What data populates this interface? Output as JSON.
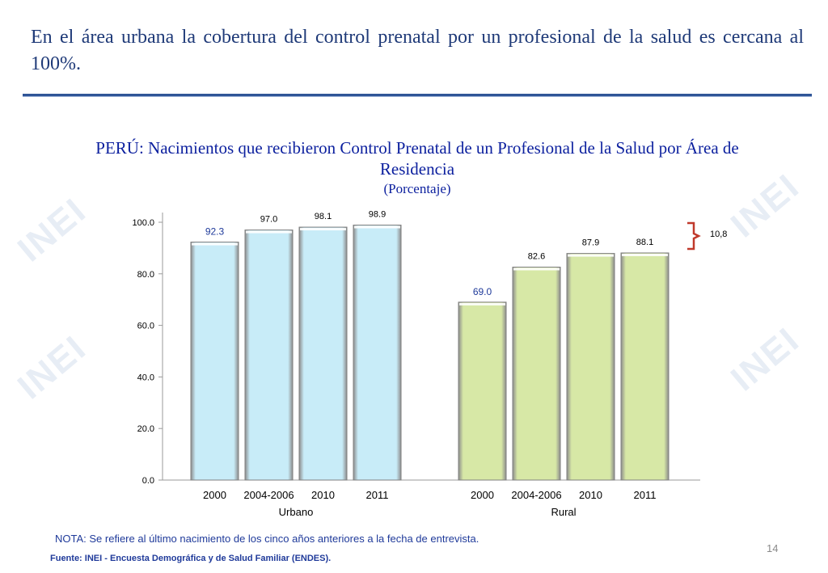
{
  "headline": "En el área urbana la cobertura del control prenatal por un profesional de la salud es cercana al 100%.",
  "chart_data": {
    "type": "bar",
    "title": "PERÚ: Nacimientos que recibieron Control Prenatal de un Profesional de la Salud por Área de Residencia",
    "subtitle": "(Porcentaje)",
    "ylim": [
      0,
      100
    ],
    "yticks": [
      "0.0",
      "20.0",
      "40.0",
      "60.0",
      "80.0",
      "100.0"
    ],
    "groups": [
      {
        "name": "Urbano",
        "color": "#c8ecf8",
        "categories": [
          "2000",
          "2004-2006",
          "2010",
          "2011"
        ],
        "values": [
          92.3,
          97.0,
          98.1,
          98.9
        ],
        "labels": [
          "92.3",
          "97.0",
          "98.1",
          "98.9"
        ]
      },
      {
        "name": "Rural",
        "color": "#d7e8a6",
        "categories": [
          "2000",
          "2004-2006",
          "2010",
          "2011"
        ],
        "values": [
          69.0,
          82.6,
          87.9,
          88.1
        ],
        "labels": [
          "69.0",
          "82.6",
          "87.9",
          "88.1"
        ]
      }
    ],
    "annotation": {
      "text": "10,8",
      "color": "#c0392b"
    }
  },
  "note": "NOTA: Se refiere al último nacimiento de los cinco años anteriores a la fecha de entrevista.",
  "source": "Fuente: INEI - Encuesta Demográfica y de Salud Familiar (ENDES).",
  "page_number": "14"
}
